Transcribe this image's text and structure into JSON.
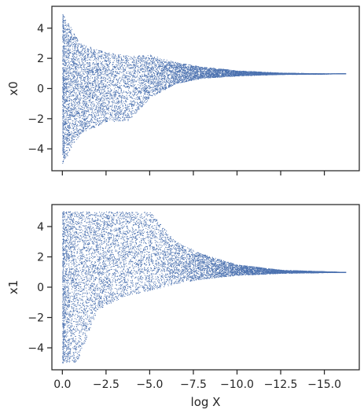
{
  "chart_data": [
    {
      "type": "scatter",
      "ylabel": "x0",
      "xlabel": "",
      "xlim": [
        0.6,
        -17.0
      ],
      "ylim": [
        -5.45,
        5.45
      ],
      "x_ticks": [
        0,
        -2.5,
        -5,
        -7.5,
        -10,
        -12.5,
        -15
      ],
      "x_tick_labels": [],
      "y_ticks": [
        4,
        2,
        0,
        -2,
        -4
      ],
      "y_tick_labels": [
        "4",
        "2",
        "0",
        "−2",
        "−4"
      ],
      "grid": false,
      "series": [
        {
          "color": "#4c72b0",
          "regions": [
            {
              "x": [
                0.0,
                -1.0,
                -2.5,
                -3.8,
                -5.0,
                -6.5,
                -8.0,
                -10.0,
                -12.5,
                -15.0,
                -16.2
              ],
              "y_upper": [
                5.0,
                3.0,
                2.4,
                2.2,
                2.25,
                1.75,
                1.45,
                1.2,
                1.05,
                1.0,
                1.0
              ],
              "y_lower": [
                -5.0,
                -3.0,
                -2.2,
                -2.1,
                -0.6,
                0.35,
                0.7,
                0.85,
                0.95,
                0.98,
                1.0
              ]
            }
          ]
        }
      ]
    },
    {
      "type": "scatter",
      "ylabel": "x1",
      "xlabel": "log X",
      "xlim": [
        0.6,
        -17.0
      ],
      "ylim": [
        -5.45,
        5.45
      ],
      "x_ticks": [
        0,
        -2.5,
        -5,
        -7.5,
        -10,
        -12.5,
        -15
      ],
      "x_tick_labels": [
        "0.0",
        "−2.5",
        "−5.0",
        "−7.5",
        "−10.0",
        "−12.5",
        "−15.0"
      ],
      "y_ticks": [
        4,
        2,
        0,
        -2,
        -4
      ],
      "y_tick_labels": [
        "4",
        "2",
        "0",
        "−2",
        "−4"
      ],
      "grid": false,
      "series": [
        {
          "color": "#4c72b0",
          "regions": [
            {
              "x": [
                0.0,
                -0.8,
                -2.0,
                -3.5,
                -5.0,
                -6.5,
                -8.0,
                -10.0,
                -12.5,
                -15.0,
                -16.2
              ],
              "y_upper": [
                5.0,
                5.0,
                5.0,
                5.0,
                5.0,
                3.0,
                2.2,
                1.5,
                1.15,
                1.05,
                1.0
              ],
              "y_lower": [
                -5.0,
                -5.0,
                -1.5,
                -0.6,
                -0.2,
                0.25,
                0.55,
                0.8,
                0.93,
                0.98,
                1.0
              ]
            }
          ]
        }
      ]
    }
  ]
}
